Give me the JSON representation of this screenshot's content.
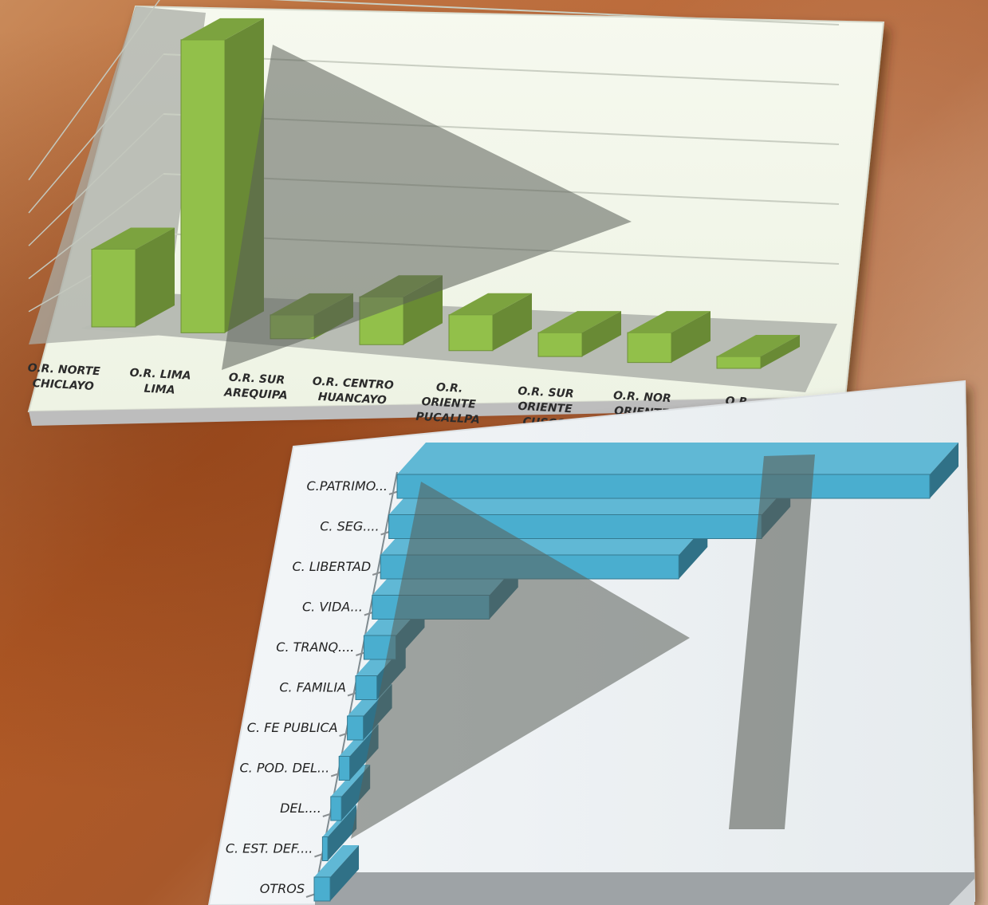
{
  "chart_data": [
    {
      "type": "bar",
      "orientation": "vertical",
      "style": "3d",
      "categories": [
        [
          "O.R. NORTE",
          "CHICLAYO"
        ],
        [
          "O.R. LIMA",
          "LIMA"
        ],
        [
          "O.R. SUR",
          "AREQUIPA"
        ],
        [
          "O.R. CENTRO",
          "HUANCAYO"
        ],
        [
          "O.R.",
          "ORIENTE",
          "PUCALLPA"
        ],
        [
          "O.R. SUR",
          "ORIENTE",
          "CUSCO"
        ],
        [
          "O.R. NOR",
          "ORIENTE"
        ],
        [
          "O.R."
        ]
      ],
      "values": [
        13,
        49,
        4,
        8,
        6,
        4,
        5,
        2
      ],
      "ylim": [
        0,
        50
      ],
      "grid": true,
      "bar_color": "#92c04a"
    },
    {
      "type": "bar",
      "orientation": "horizontal",
      "style": "3d",
      "categories": [
        "C.PATRIMO...",
        "C. SEG....",
        "C. LIBERTAD",
        "C. VIDA...",
        "C. TRANQ....",
        "C. FAMILIA",
        "C. FE PUBLICA",
        "C. POD. DEL...",
        "DEL....",
        "C. EST. DEF....",
        "OTROS"
      ],
      "values": [
        100,
        70,
        56,
        22,
        6,
        4,
        3,
        2,
        2,
        1,
        3
      ],
      "xlim": [
        0,
        100
      ],
      "bar_color": "#4aaecf"
    }
  ]
}
